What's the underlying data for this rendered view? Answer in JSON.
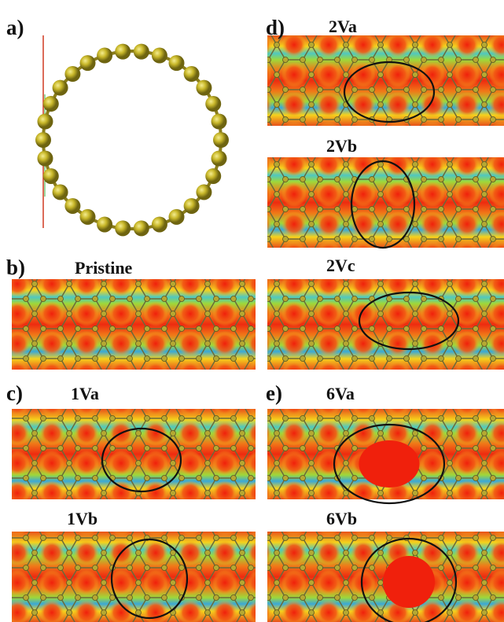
{
  "panels": [
    {
      "label": "a)"
    },
    {
      "label": "b)",
      "maps": [
        {
          "title": "Pristine"
        }
      ]
    },
    {
      "label": "c)",
      "maps": [
        {
          "title": "1Va"
        },
        {
          "title": "1Vb"
        }
      ]
    },
    {
      "label": "d)",
      "maps": [
        {
          "title": "2Va"
        },
        {
          "title": "2Vb"
        },
        {
          "title": "2Vc"
        }
      ]
    },
    {
      "label": "e)",
      "maps": [
        {
          "title": "6Va"
        },
        {
          "title": "6Vb"
        }
      ]
    }
  ]
}
